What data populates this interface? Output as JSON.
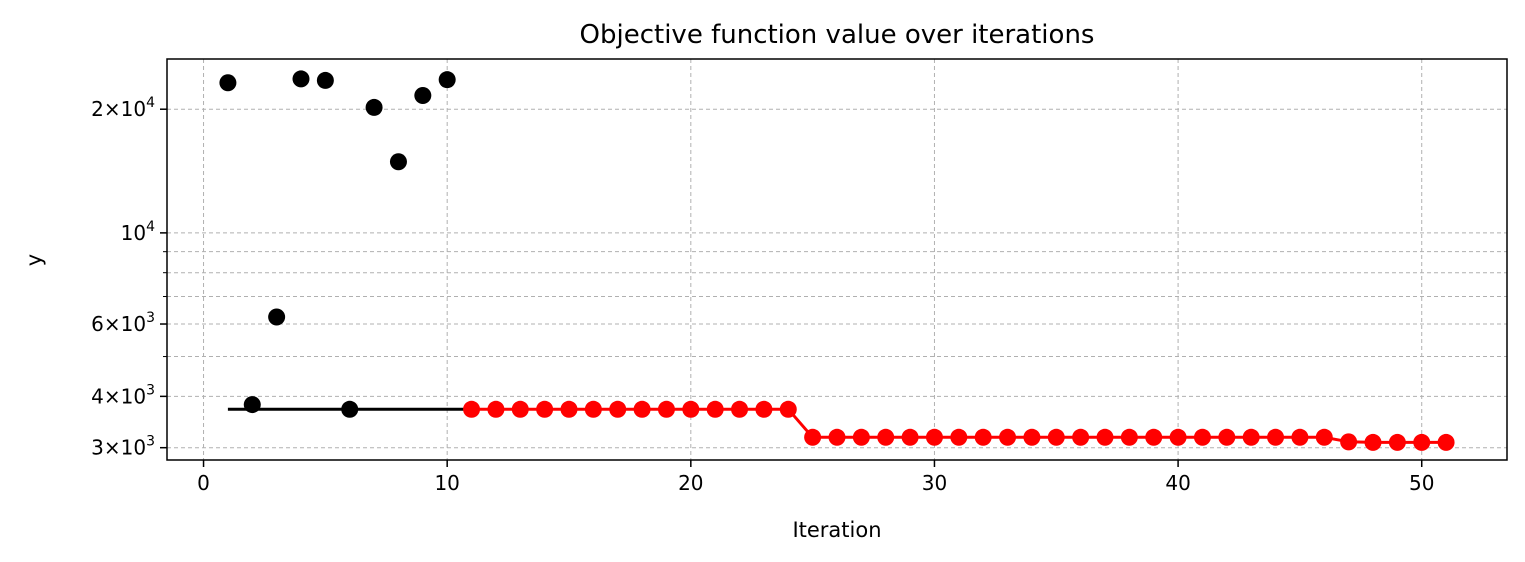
{
  "chart_data": {
    "type": "scatter",
    "title": "Objective function value over iterations",
    "xlabel": "Iteration",
    "ylabel": "y",
    "xlim": [
      -1.5,
      53.5
    ],
    "ylim": [
      2800,
      26500
    ],
    "yscale": "log",
    "grid": true,
    "x_ticks": [
      {
        "value": 0,
        "label": "0"
      },
      {
        "value": 10,
        "label": "10"
      },
      {
        "value": 20,
        "label": "20"
      },
      {
        "value": 30,
        "label": "30"
      },
      {
        "value": 40,
        "label": "40"
      },
      {
        "value": 50,
        "label": "50"
      }
    ],
    "y_major_ticks": [
      {
        "value": 3000,
        "mant": "3",
        "exp": "3"
      },
      {
        "value": 4000,
        "mant": "4",
        "exp": "3"
      },
      {
        "value": 6000,
        "mant": "6",
        "exp": "3"
      },
      {
        "value": 10000,
        "mant": "",
        "exp": "4"
      },
      {
        "value": 20000,
        "mant": "2",
        "exp": "4"
      }
    ],
    "y_minor_ticks": [
      5000,
      7000,
      8000,
      9000
    ],
    "series": [
      {
        "color": "#000000",
        "style": "markers",
        "x": [
          1,
          2,
          3,
          4,
          5,
          6,
          7,
          8,
          9,
          10
        ],
        "y": [
          23200,
          3820,
          6240,
          23700,
          23500,
          3720,
          20200,
          14900,
          21600,
          23600
        ]
      },
      {
        "color": "#000000",
        "style": "line",
        "x": [
          1,
          11
        ],
        "y": [
          3720,
          3720
        ]
      },
      {
        "color": "#ff0000",
        "style": "line+markers",
        "x": [
          11,
          12,
          13,
          14,
          15,
          16,
          17,
          18,
          19,
          20,
          21,
          22,
          23,
          24,
          25,
          26,
          27,
          28,
          29,
          30,
          31,
          32,
          33,
          34,
          35,
          36,
          37,
          38,
          39,
          40,
          41,
          42,
          43,
          44,
          45,
          46,
          47,
          48,
          49,
          50,
          51
        ],
        "y": [
          3720,
          3720,
          3720,
          3720,
          3720,
          3720,
          3720,
          3720,
          3720,
          3720,
          3720,
          3720,
          3720,
          3720,
          3180,
          3180,
          3180,
          3180,
          3180,
          3180,
          3180,
          3180,
          3180,
          3180,
          3180,
          3180,
          3180,
          3180,
          3180,
          3180,
          3180,
          3180,
          3180,
          3180,
          3180,
          3180,
          3100,
          3090,
          3090,
          3090,
          3090
        ]
      }
    ]
  }
}
